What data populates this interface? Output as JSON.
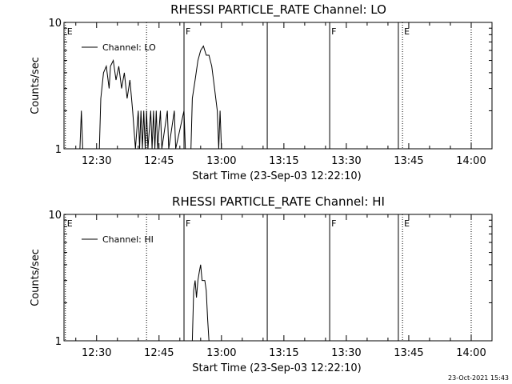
{
  "chart_data": [
    {
      "type": "line",
      "title": "RHESSI PARTICLE_RATE Channel: LO",
      "xlabel": "Start Time (23-Sep-03 12:22:10)",
      "ylabel": "Counts/sec",
      "yscale": "log",
      "ylim": [
        1,
        10
      ],
      "y_ticks": [
        "1",
        "10"
      ],
      "xlim": [
        "12:22:10",
        "14:05:00"
      ],
      "x_ticks": [
        "12:30",
        "12:45",
        "13:00",
        "13:15",
        "13:30",
        "13:45",
        "14:00"
      ],
      "grid": false,
      "legend_position": "top-left",
      "series": [
        {
          "name": "Channel: LO",
          "color": "#000000",
          "points": [
            [
              "12:26:00",
              1
            ],
            [
              "12:26:20",
              2
            ],
            [
              "12:26:40",
              1
            ],
            [
              "12:30:40",
              1
            ],
            [
              "12:31:00",
              2.5
            ],
            [
              "12:31:40",
              4
            ],
            [
              "12:32:20",
              4.5
            ],
            [
              "12:33:00",
              3
            ],
            [
              "12:33:20",
              4.5
            ],
            [
              "12:34:00",
              5
            ],
            [
              "12:34:40",
              3.5
            ],
            [
              "12:35:20",
              4.5
            ],
            [
              "12:36:00",
              3
            ],
            [
              "12:36:40",
              4
            ],
            [
              "12:37:20",
              2.5
            ],
            [
              "12:38:00",
              3.5
            ],
            [
              "12:38:40",
              2
            ],
            [
              "12:39:20",
              1
            ],
            [
              "12:40:00",
              2
            ],
            [
              "12:40:20",
              1
            ],
            [
              "12:40:40",
              2
            ],
            [
              "12:41:00",
              1
            ],
            [
              "12:41:20",
              2
            ],
            [
              "12:41:40",
              1
            ],
            [
              "12:42:00",
              2
            ],
            [
              "12:42:20",
              1
            ],
            [
              "12:43:00",
              2
            ],
            [
              "12:43:20",
              1
            ],
            [
              "12:43:40",
              2
            ],
            [
              "12:44:00",
              1
            ],
            [
              "12:44:20",
              2
            ],
            [
              "12:44:40",
              1
            ],
            [
              "12:45:20",
              2
            ],
            [
              "12:45:40",
              1
            ],
            [
              "12:47:00",
              2
            ],
            [
              "12:47:20",
              1
            ],
            [
              "12:48:40",
              2
            ],
            [
              "12:49:00",
              1
            ],
            [
              "12:51:00",
              2
            ],
            [
              "12:51:20",
              1
            ],
            [
              "12:52:40",
              1
            ],
            [
              "12:53:00",
              2.5
            ],
            [
              "12:53:40",
              3.5
            ],
            [
              "12:54:20",
              5
            ],
            [
              "12:55:00",
              6
            ],
            [
              "12:55:40",
              6.5
            ],
            [
              "12:56:20",
              5.5
            ],
            [
              "12:57:00",
              5.5
            ],
            [
              "12:57:40",
              4.5
            ],
            [
              "12:58:20",
              3
            ],
            [
              "12:59:00",
              2
            ],
            [
              "12:59:20",
              1
            ],
            [
              "12:59:40",
              2
            ],
            [
              "13:00:00",
              1
            ]
          ]
        }
      ],
      "markers": [
        {
          "time": "12:22:30",
          "label": "E",
          "style": "dotted"
        },
        {
          "time": "12:42:00",
          "label": "",
          "style": "dotted"
        },
        {
          "time": "12:51:00",
          "label": "F",
          "style": "solid"
        },
        {
          "time": "13:11:00",
          "label": "",
          "style": "solid"
        },
        {
          "time": "13:26:00",
          "label": "F",
          "style": "solid"
        },
        {
          "time": "13:42:30",
          "label": "",
          "style": "solid"
        },
        {
          "time": "13:43:30",
          "label": "E",
          "style": "dotted"
        },
        {
          "time": "14:00:00",
          "label": "",
          "style": "dotted"
        }
      ]
    },
    {
      "type": "line",
      "title": "RHESSI PARTICLE_RATE Channel: HI",
      "xlabel": "Start Time (23-Sep-03 12:22:10)",
      "ylabel": "Counts/sec",
      "yscale": "log",
      "ylim": [
        1,
        10
      ],
      "y_ticks": [
        "1",
        "10"
      ],
      "xlim": [
        "12:22:10",
        "14:05:00"
      ],
      "x_ticks": [
        "12:30",
        "12:45",
        "13:00",
        "13:15",
        "13:30",
        "13:45",
        "14:00"
      ],
      "grid": false,
      "legend_position": "top-left",
      "series": [
        {
          "name": "Channel: HI",
          "color": "#000000",
          "points": [
            [
              "12:53:00",
              1
            ],
            [
              "12:53:20",
              2.5
            ],
            [
              "12:53:40",
              3
            ],
            [
              "12:54:00",
              2.2
            ],
            [
              "12:54:20",
              3
            ],
            [
              "12:54:40",
              3.5
            ],
            [
              "12:55:00",
              4
            ],
            [
              "12:55:20",
              3
            ],
            [
              "12:55:40",
              3
            ],
            [
              "12:56:00",
              3
            ],
            [
              "12:56:20",
              2.5
            ],
            [
              "12:56:40",
              1.5
            ],
            [
              "12:57:00",
              1
            ]
          ]
        }
      ],
      "markers": [
        {
          "time": "12:22:30",
          "label": "E",
          "style": "dotted"
        },
        {
          "time": "12:42:00",
          "label": "",
          "style": "dotted"
        },
        {
          "time": "12:51:00",
          "label": "F",
          "style": "solid"
        },
        {
          "time": "13:11:00",
          "label": "",
          "style": "solid"
        },
        {
          "time": "13:26:00",
          "label": "F",
          "style": "solid"
        },
        {
          "time": "13:42:30",
          "label": "",
          "style": "solid"
        },
        {
          "time": "13:43:30",
          "label": "E",
          "style": "dotted"
        },
        {
          "time": "14:00:00",
          "label": "",
          "style": "dotted"
        }
      ]
    }
  ],
  "footer": {
    "timestamp": "23-Oct-2021 15:43"
  }
}
